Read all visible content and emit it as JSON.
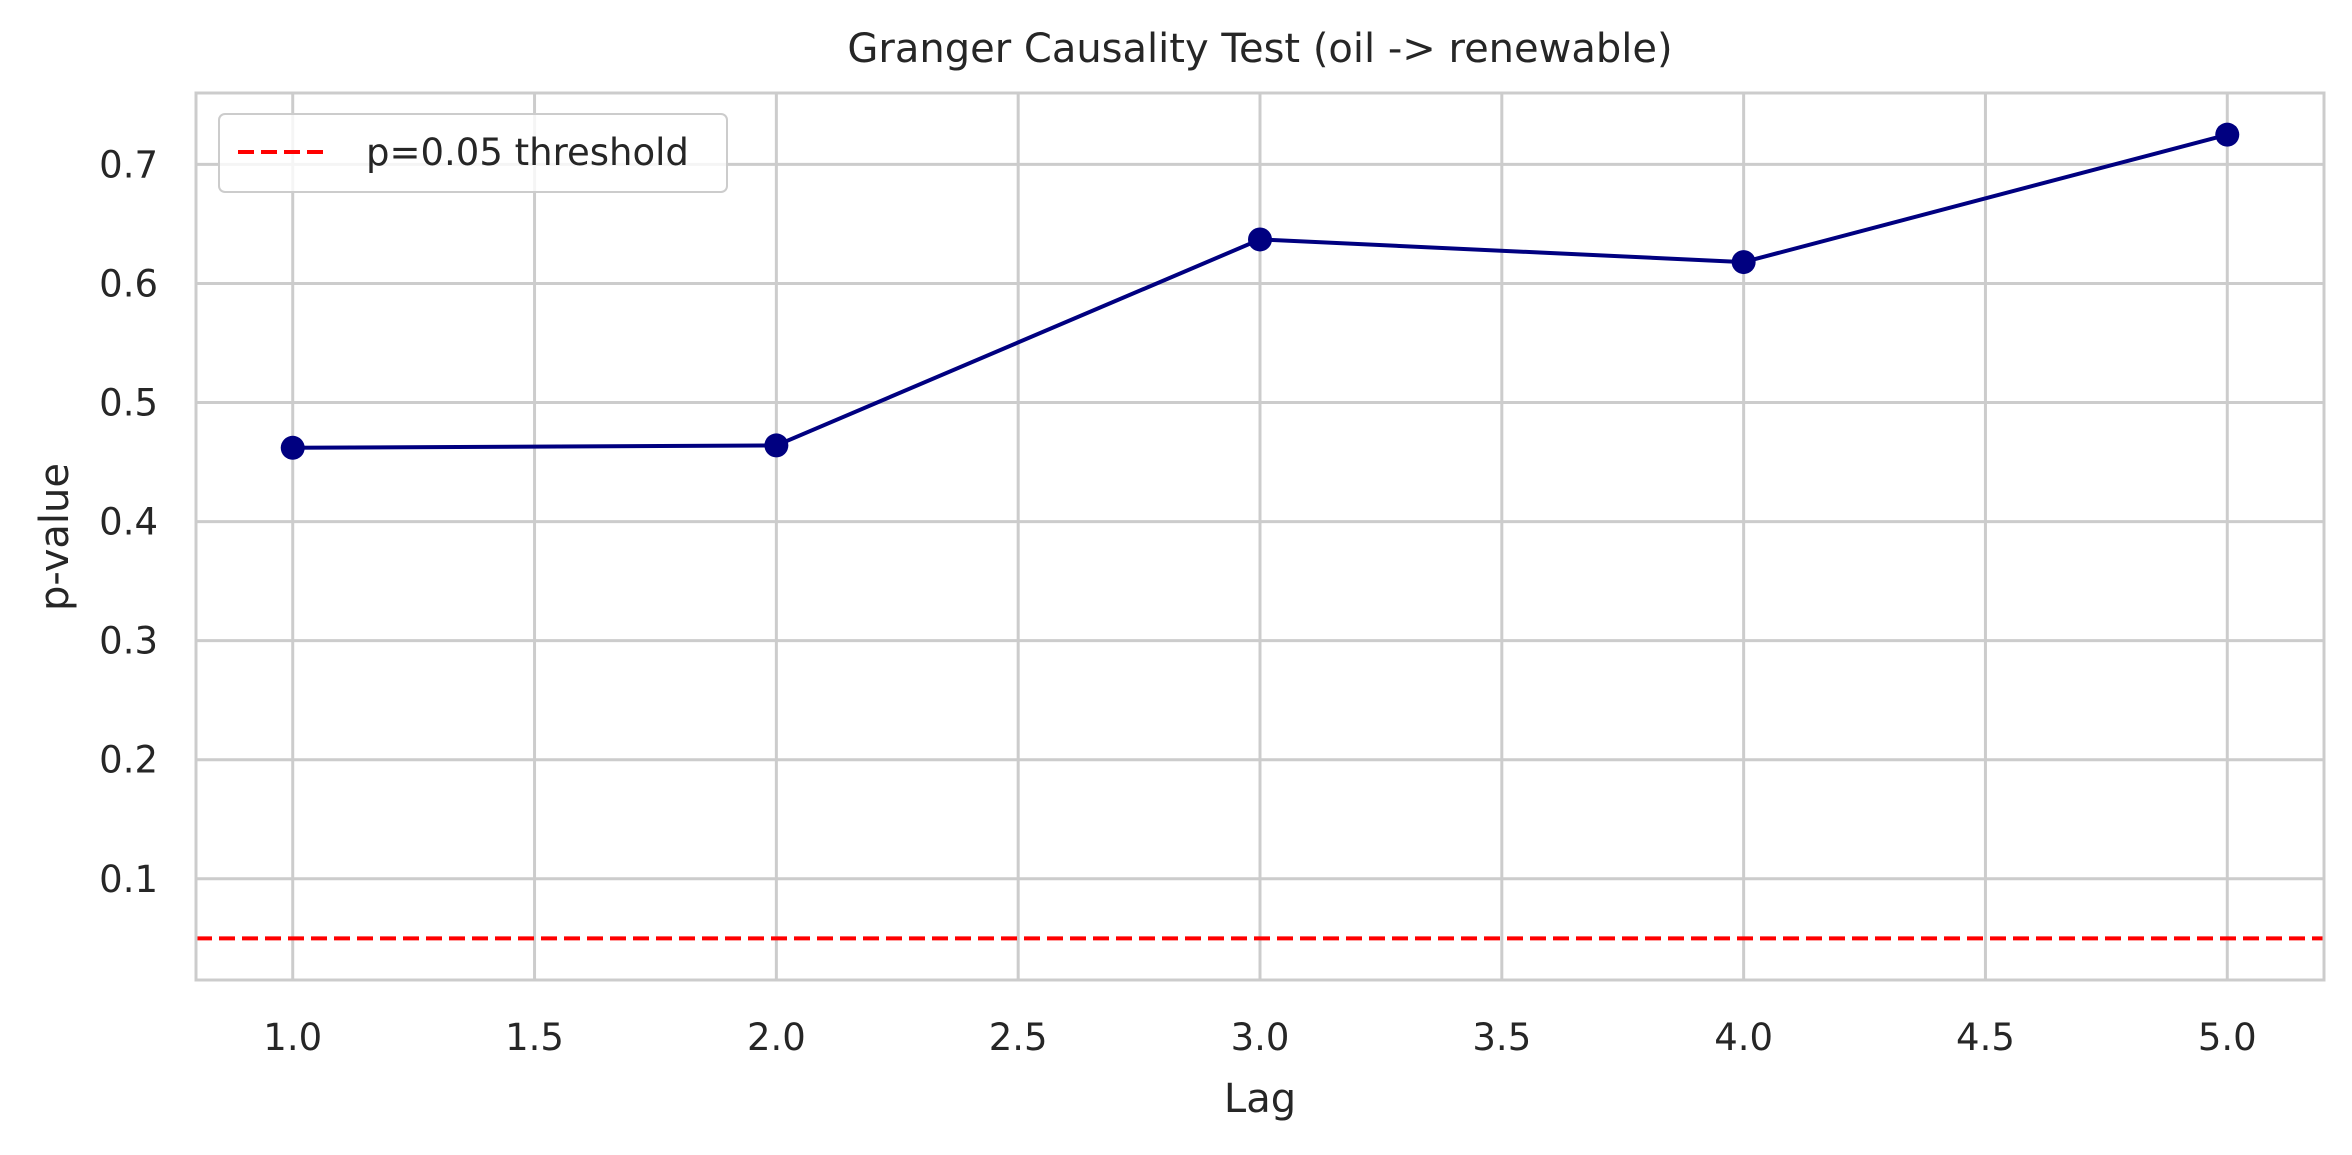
{
  "chart_data": {
    "type": "line",
    "title": "Granger Causality Test (oil -> renewable)",
    "xlabel": "Lag",
    "ylabel": "p-value",
    "x": [
      1.0,
      2.0,
      3.0,
      4.0,
      5.0
    ],
    "series": [
      {
        "values": [
          0.462,
          0.464,
          0.637,
          0.618,
          0.725
        ],
        "color": "#000080",
        "marker": "circle"
      }
    ],
    "threshold": {
      "name": "p=0.05 threshold",
      "value": 0.05,
      "color": "#ff0000",
      "style": "dashed"
    },
    "xlim": [
      0.8,
      5.2
    ],
    "ylim": [
      0.015,
      0.76
    ],
    "xticks": [
      1.0,
      1.5,
      2.0,
      2.5,
      3.0,
      3.5,
      4.0,
      4.5,
      5.0
    ],
    "xtick_labels": [
      "1.0",
      "1.5",
      "2.0",
      "2.5",
      "3.0",
      "3.5",
      "4.0",
      "4.5",
      "5.0"
    ],
    "yticks": [
      0.1,
      0.2,
      0.3,
      0.4,
      0.5,
      0.6,
      0.7
    ],
    "ytick_labels": [
      "0.1",
      "0.2",
      "0.3",
      "0.4",
      "0.5",
      "0.6",
      "0.7"
    ],
    "grid": true,
    "legend_position": "top-left"
  }
}
